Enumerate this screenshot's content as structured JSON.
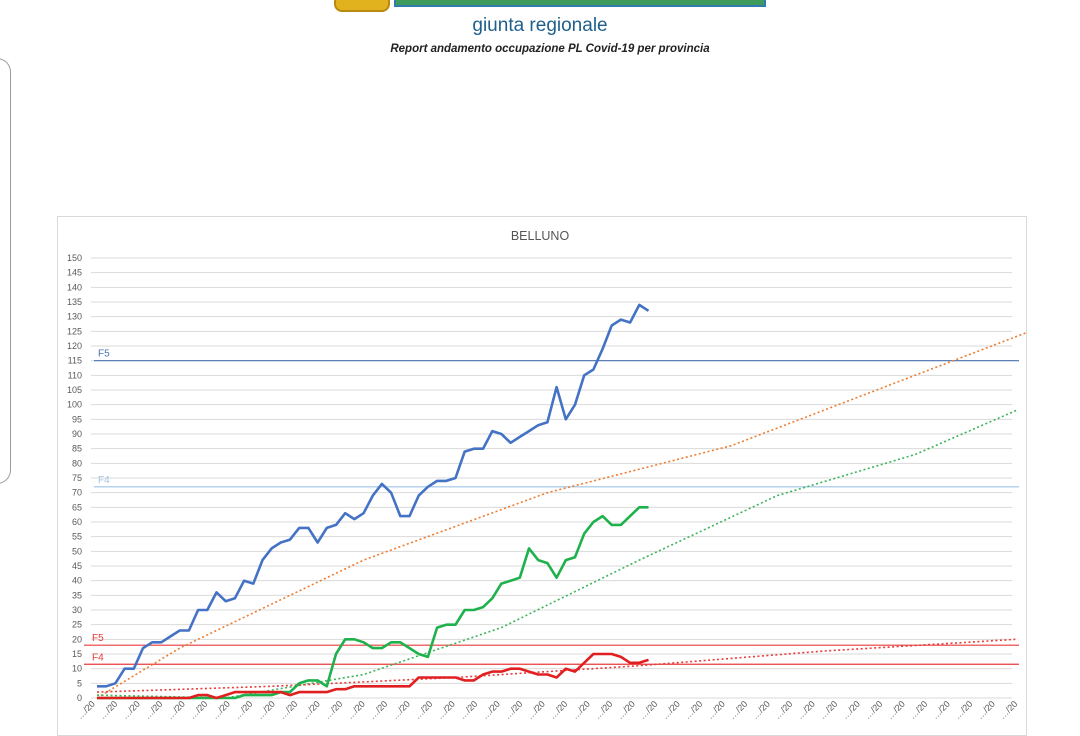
{
  "header": {
    "org_name": "giunta regionale",
    "report_title": "Report andamento occupazione PL Covid-19 per provincia"
  },
  "chart_data": {
    "type": "line",
    "title": "BELLUNO",
    "ylim": [
      0,
      150
    ],
    "yticks": [
      0,
      5,
      10,
      15,
      20,
      25,
      30,
      35,
      40,
      45,
      50,
      55,
      60,
      65,
      70,
      75,
      80,
      85,
      90,
      95,
      100,
      105,
      110,
      115,
      120,
      125,
      130,
      135,
      140,
      145,
      150
    ],
    "xtick_labels": [
      "…/20",
      "…/20",
      "…/20",
      "…/20",
      "…/20",
      "…/20",
      "…/20",
      "…/20",
      "…/20",
      "…/20",
      "…/20",
      "…/20",
      "…/20",
      "…/20",
      "…/20",
      "…/20",
      "…/20",
      "…/20",
      "…/20",
      "…/20",
      "…/20",
      "…/20",
      "…/20",
      "…/20",
      "…/20",
      "…/20",
      "…/20",
      "…/20",
      "…/20",
      "…/20",
      "…/20",
      "…/20",
      "…/20",
      "…/20",
      "…/20",
      "…/20",
      "…/20",
      "…/20",
      "…/20",
      "…/20",
      "…/20",
      "…/20"
    ],
    "x_days": 100,
    "grid": true,
    "thresholds": [
      {
        "label": "F5",
        "value": 115,
        "color": "#4a72b0"
      },
      {
        "label": "F4",
        "value": 72,
        "color": "#9dc3e6"
      },
      {
        "label": "F5",
        "value": 18,
        "color": "#e83b3b"
      },
      {
        "label": "F4",
        "value": 11.5,
        "color": "#e83b3b"
      }
    ],
    "series": [
      {
        "color": "#4472c4",
        "values": [
          4,
          4,
          5,
          10,
          10,
          17,
          19,
          19,
          21,
          23,
          23,
          30,
          30,
          36,
          33,
          34,
          40,
          39,
          47,
          51,
          53,
          54,
          58,
          58,
          53,
          58,
          59,
          63,
          61,
          63,
          69,
          73,
          70,
          62,
          62,
          69,
          72,
          74,
          74,
          75,
          84,
          85,
          85,
          91,
          90,
          87,
          89,
          91,
          93,
          94,
          106,
          95,
          100,
          110,
          112,
          119,
          127,
          129,
          128,
          134,
          132
        ]
      },
      {
        "color": "#1eb14c",
        "values": [
          0,
          0,
          0,
          0,
          0,
          0,
          0,
          0,
          0,
          0,
          0,
          0,
          0,
          0,
          0,
          0,
          1,
          1,
          1,
          1,
          2,
          2,
          5,
          6,
          6,
          4,
          15,
          20,
          20,
          19,
          17,
          17,
          19,
          19,
          17,
          15,
          14,
          24,
          25,
          25,
          30,
          30,
          31,
          34,
          39,
          40,
          41,
          51,
          47,
          46,
          41,
          47,
          48,
          56,
          60,
          62,
          59,
          59,
          62,
          65,
          65
        ]
      },
      {
        "color": "#e02020",
        "values": [
          0,
          0,
          0,
          0,
          0,
          0,
          0,
          0,
          0,
          0,
          0,
          1,
          1,
          0,
          1,
          2,
          2,
          2,
          2,
          2,
          2,
          1,
          2,
          2,
          2,
          2,
          3,
          3,
          4,
          4,
          4,
          4,
          4,
          4,
          4,
          7,
          7,
          7,
          7,
          7,
          6,
          6,
          8,
          9,
          9,
          10,
          10,
          9,
          8,
          8,
          7,
          10,
          9,
          12,
          15,
          15,
          15,
          14,
          12,
          12,
          13
        ]
      }
    ],
    "trendlines": [
      {
        "color": "#ed7d31",
        "points": [
          [
            1,
            0
          ],
          [
            10,
            17
          ],
          [
            30,
            47
          ],
          [
            50,
            70
          ],
          [
            70,
            86
          ],
          [
            90,
            110
          ],
          [
            110,
            134
          ],
          [
            140,
            150
          ]
        ]
      },
      {
        "color": "#3cb459",
        "points": [
          [
            1,
            1
          ],
          [
            15,
            0
          ],
          [
            30,
            8
          ],
          [
            45,
            24
          ],
          [
            60,
            47
          ],
          [
            75,
            69
          ],
          [
            90,
            83
          ],
          [
            101,
            98
          ]
        ]
      },
      {
        "color": "#e83b3b",
        "points": [
          [
            1,
            2
          ],
          [
            20,
            4
          ],
          [
            40,
            7
          ],
          [
            60,
            11
          ],
          [
            80,
            16
          ],
          [
            101,
            20
          ]
        ]
      }
    ]
  }
}
